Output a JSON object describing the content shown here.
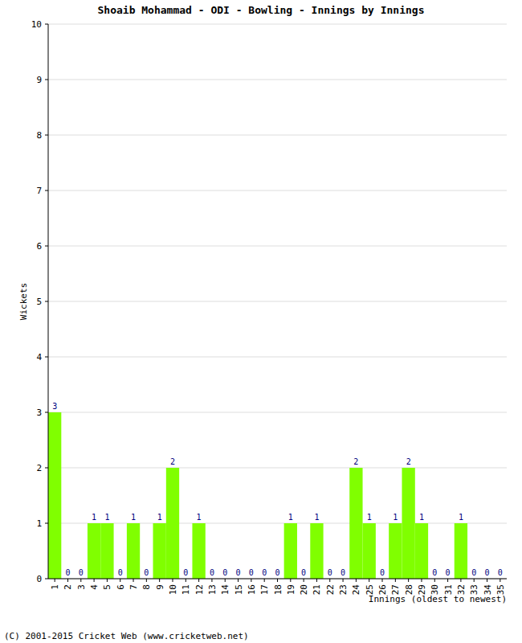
{
  "chart_data": {
    "type": "bar",
    "title": "Shoaib Mohammad - ODI - Bowling - Innings by Innings",
    "x_label": "Innings (oldest to newest)",
    "y_label": "Wickets",
    "footer": "(C) 2001-2015 Cricket Web (www.cricketweb.net)",
    "categories": [
      "1",
      "2",
      "3",
      "4",
      "5",
      "6",
      "7",
      "8",
      "9",
      "10",
      "11",
      "12",
      "13",
      "14",
      "15",
      "16",
      "17",
      "18",
      "19",
      "20",
      "21",
      "22",
      "23",
      "24",
      "25",
      "26",
      "27",
      "28",
      "29",
      "30",
      "31",
      "32",
      "33",
      "34",
      "35"
    ],
    "values": [
      3,
      0,
      0,
      1,
      1,
      0,
      1,
      0,
      1,
      2,
      0,
      1,
      0,
      0,
      0,
      0,
      0,
      0,
      1,
      0,
      1,
      0,
      0,
      2,
      1,
      0,
      1,
      2,
      1,
      0,
      0,
      1,
      0,
      0,
      0
    ],
    "color": "#80ff00",
    "ylim": [
      0,
      10
    ],
    "yticks": [
      0,
      1,
      2,
      3,
      4,
      5,
      6,
      7,
      8,
      9,
      10
    ],
    "grid": true,
    "data_labels": true
  }
}
